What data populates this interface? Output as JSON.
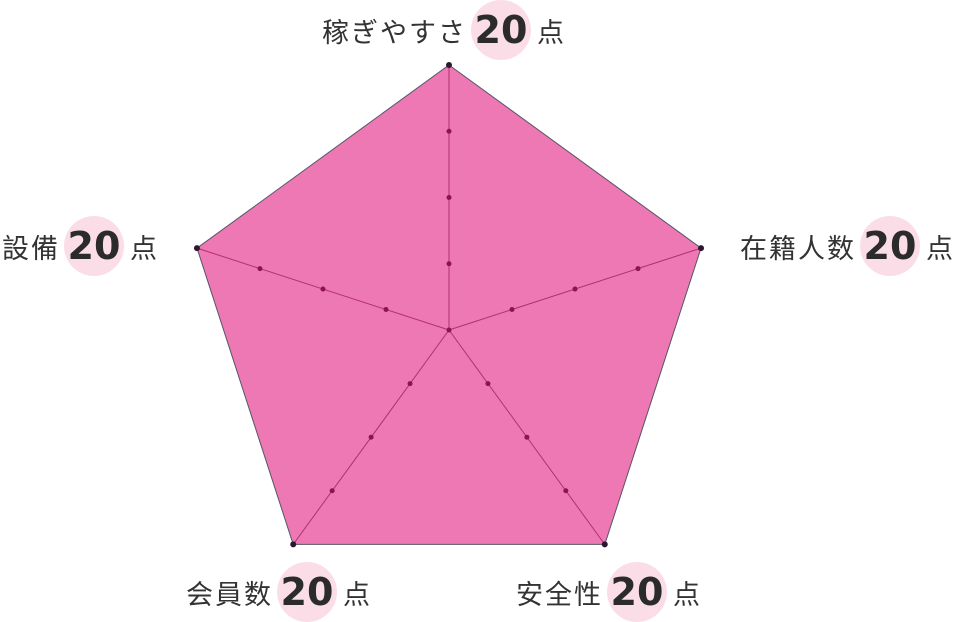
{
  "chart_data": {
    "type": "radar",
    "max": 20,
    "rings": 4,
    "axes": [
      {
        "key": "top",
        "name": "稼ぎやすさ",
        "value": 20,
        "score": "20",
        "unit": "点"
      },
      {
        "key": "right",
        "name": "在籍人数",
        "value": 20,
        "score": "20",
        "unit": "点"
      },
      {
        "key": "br",
        "name": "安全性",
        "value": 20,
        "score": "20",
        "unit": "点"
      },
      {
        "key": "bl",
        "name": "会員数",
        "value": 20,
        "score": "20",
        "unit": "点"
      },
      {
        "key": "left",
        "name": "設備",
        "value": 20,
        "score": "20",
        "unit": "点"
      }
    ],
    "colors": {
      "fill": "#ee78b3",
      "stroke": "#555566",
      "spoke": "#b0306e",
      "tick_dot": "#8c1450",
      "vertex_dot": "#2a1830",
      "score_bg": "#fbdde8"
    }
  }
}
